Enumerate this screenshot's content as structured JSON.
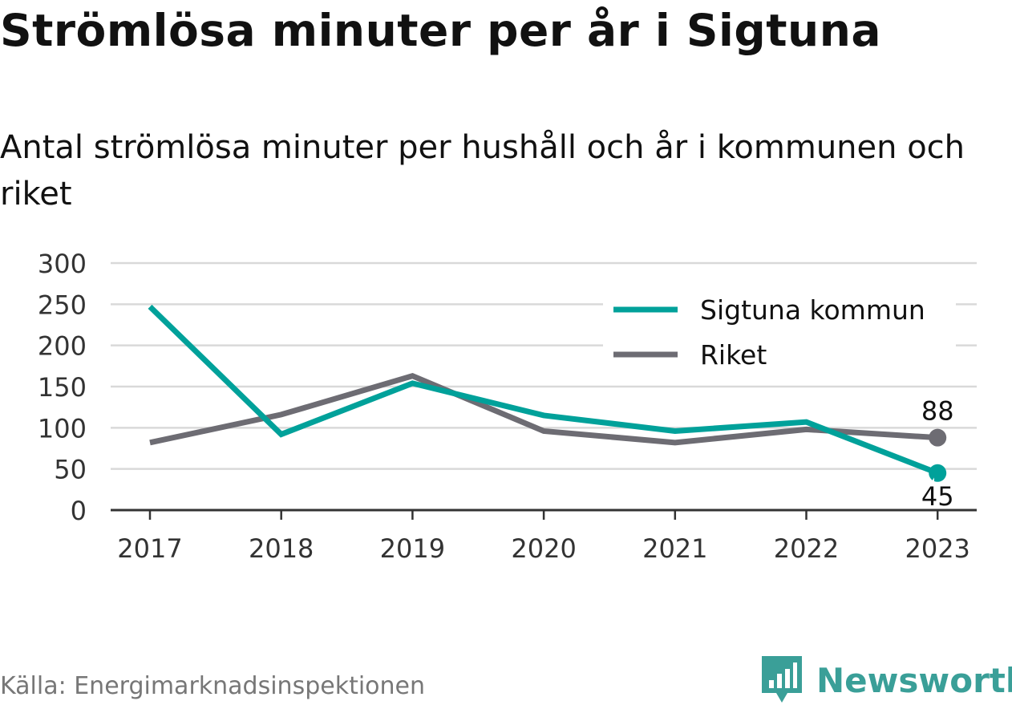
{
  "header": {
    "title": "Strömlösa minuter per år i Sigtuna",
    "subtitle": "Antal strömlösa minuter per hushåll och år i kommunen och riket"
  },
  "footer": {
    "source": "Källa: Energimarknadsinspektionen",
    "brand": "Newsworthy",
    "brand_icon": "bar-chart-pin-icon"
  },
  "colors": {
    "sigtuna": "#00a19a",
    "riket": "#6d6c73",
    "grid": "#d9d9d9",
    "axis": "#333333",
    "brand": "#3a9f98"
  },
  "chart_data": {
    "type": "line",
    "x": [
      "2017",
      "2018",
      "2019",
      "2020",
      "2021",
      "2022",
      "2023"
    ],
    "series": [
      {
        "name": "Sigtuna kommun",
        "values": [
          247,
          92,
          154,
          115,
          96,
          107,
          45
        ],
        "end_label": "45",
        "color": "#00a19a"
      },
      {
        "name": "Riket",
        "values": [
          82,
          116,
          163,
          96,
          82,
          98,
          88
        ],
        "end_label": "88",
        "color": "#6d6c73"
      }
    ],
    "yticks": [
      "0",
      "50",
      "100",
      "150",
      "200",
      "250",
      "300"
    ],
    "ylim": [
      0,
      300
    ],
    "grid": true,
    "legend": "top-right"
  }
}
